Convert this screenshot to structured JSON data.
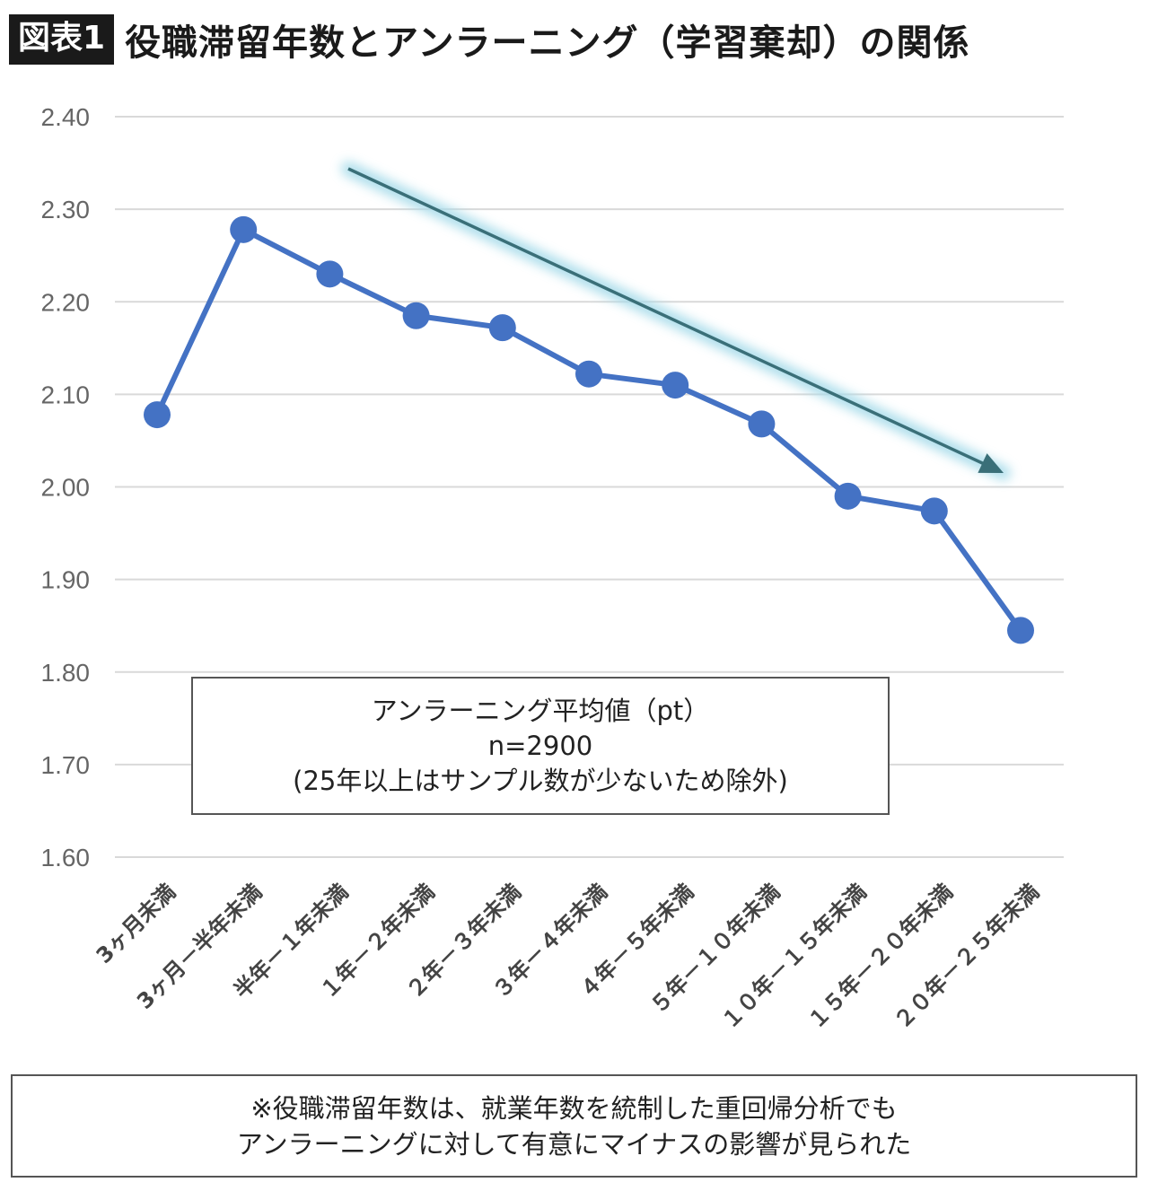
{
  "header": {
    "badge": "図表1",
    "title": "役職滞留年数とアンラーニング（学習棄却）の関係"
  },
  "chart_data": {
    "type": "line",
    "categories": [
      "3ヶ月未満",
      "3ヶ月－半年未満",
      "半年－１年未満",
      "１年－２年未満",
      "２年－３年未満",
      "３年－４年未満",
      "４年－５年未満",
      "５年－１０年未満",
      "１０年－１５年未満",
      "１５年－２０年未満",
      "２０年－２５年未満"
    ],
    "series": [
      {
        "values": [
          2.078,
          2.278,
          2.23,
          2.185,
          2.172,
          2.122,
          2.11,
          2.068,
          1.99,
          1.974,
          1.845
        ]
      }
    ],
    "ylim": [
      1.6,
      2.4
    ],
    "yticks": [
      1.6,
      1.7,
      1.8,
      1.9,
      2.0,
      2.1,
      2.2,
      2.3,
      2.4
    ],
    "ytick_labels": [
      "1.60",
      "1.70",
      "1.80",
      "1.90",
      "2.00",
      "2.10",
      "2.20",
      "2.30",
      "2.40"
    ],
    "grid": true,
    "line_color": "#4472c4",
    "trend_arrow_color": "#3a6f78",
    "trend_glow_color": "#a8dcea"
  },
  "legend": {
    "line1": "アンラーニング平均値（pt）",
    "line2": "n=2900",
    "line3": "(25年以上はサンプル数が少ないため除外)"
  },
  "note": {
    "line1": "※役職滞留年数は、就業年数を統制した重回帰分析でも",
    "line2": "アンラーニングに対して有意にマイナスの影響が見られた"
  }
}
